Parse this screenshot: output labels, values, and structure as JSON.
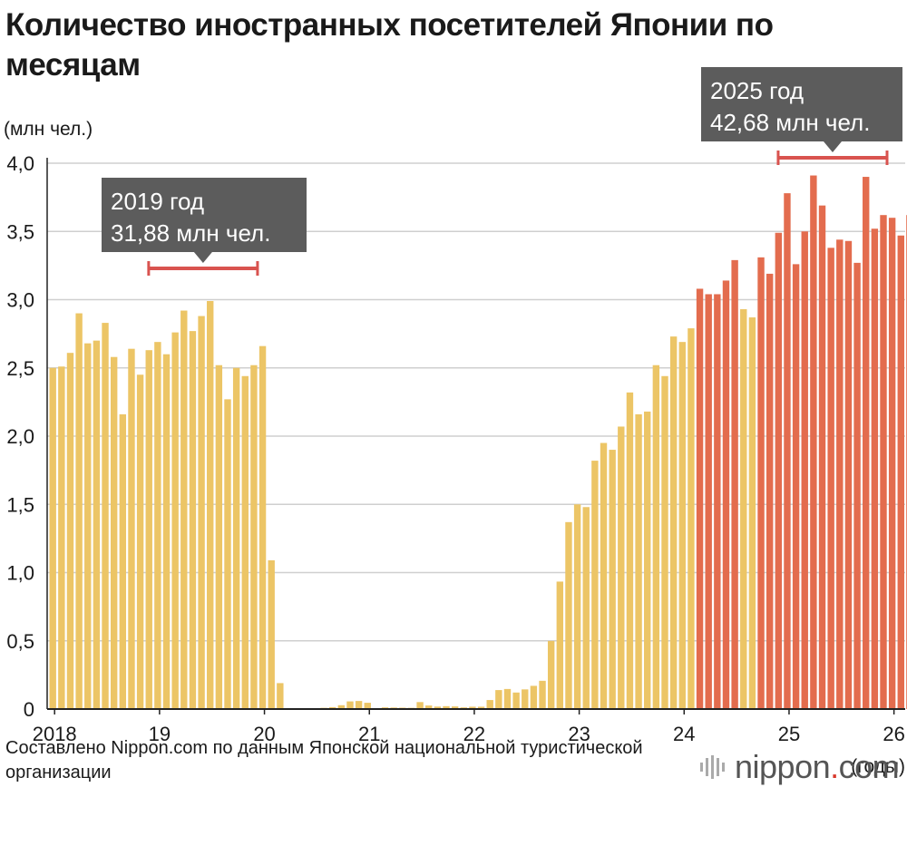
{
  "title": "Количество иностранных посетителей Японии по месяцам",
  "source": "Составлено Nippon.com по данным Японской национальной туристической организации",
  "logo": {
    "name": "nippon",
    "dot": ".",
    "suffix": "com",
    "icon": "nippon-bars-icon"
  },
  "chart_data": {
    "type": "bar",
    "yunit": "(млн чел.)",
    "xunit": "(годы)",
    "ylim": [
      0,
      4.0
    ],
    "yticks": [
      "0",
      "0,5",
      "1,0",
      "1,5",
      "2,0",
      "2,5",
      "3,0",
      "3,5",
      "4,0"
    ],
    "ytick_values": [
      0,
      0.5,
      1.0,
      1.5,
      2.0,
      2.5,
      3.0,
      3.5,
      4.0
    ],
    "xticks": [
      "2018",
      "19",
      "20",
      "21",
      "22",
      "23",
      "24",
      "25",
      "26"
    ],
    "grid": true,
    "start": "2018-01",
    "colors": {
      "base": "#ecc566",
      "highlight": "#e36c4e",
      "grid": "#cfcfcf",
      "axis": "#222222",
      "bracket": "#d9534f",
      "callout": "#5c5c5c"
    },
    "series": [
      {
        "values": [
          2.5,
          2.51,
          2.61,
          2.9,
          2.68,
          2.7,
          2.83,
          2.58,
          2.16,
          2.64,
          2.45,
          2.63,
          2.69,
          2.6,
          2.76,
          2.92,
          2.77,
          2.88,
          2.99,
          2.52,
          2.27,
          2.5,
          2.44,
          2.52,
          2.66,
          1.09,
          0.19,
          0.003,
          0.002,
          0.003,
          0.004,
          0.009,
          0.014,
          0.028,
          0.056,
          0.059,
          0.046,
          0.007,
          0.012,
          0.011,
          0.01,
          0.009,
          0.051,
          0.026,
          0.018,
          0.021,
          0.019,
          0.012,
          0.017,
          0.017,
          0.066,
          0.139,
          0.147,
          0.121,
          0.144,
          0.17,
          0.207,
          0.499,
          0.934,
          1.37,
          1.5,
          1.48,
          1.82,
          1.95,
          1.9,
          2.07,
          2.32,
          2.16,
          2.18,
          2.52,
          2.44,
          2.73,
          2.69,
          2.79,
          3.08,
          3.04,
          3.04,
          3.14,
          3.29,
          2.93,
          2.87,
          3.31,
          3.19,
          3.49,
          3.78,
          3.26,
          3.5,
          3.91,
          3.69,
          3.38,
          3.44,
          3.43,
          3.27,
          3.9,
          3.52,
          3.62,
          3.6,
          3.47,
          3.62
        ],
        "highlight": [
          false,
          false,
          false,
          false,
          false,
          false,
          false,
          false,
          false,
          false,
          false,
          false,
          false,
          false,
          false,
          false,
          false,
          false,
          false,
          false,
          false,
          false,
          false,
          false,
          false,
          false,
          false,
          false,
          false,
          false,
          false,
          false,
          false,
          false,
          false,
          false,
          false,
          false,
          false,
          false,
          false,
          false,
          false,
          false,
          false,
          false,
          false,
          false,
          false,
          false,
          false,
          false,
          false,
          false,
          false,
          false,
          false,
          false,
          false,
          false,
          false,
          false,
          false,
          false,
          false,
          false,
          false,
          false,
          false,
          false,
          false,
          false,
          false,
          false,
          true,
          true,
          true,
          true,
          true,
          false,
          false,
          true,
          true,
          true,
          true,
          true,
          true,
          true,
          true,
          true,
          true,
          true,
          true,
          true,
          true,
          true,
          true,
          true,
          true
        ]
      }
    ],
    "annotations": [
      {
        "year_label": "2019 год",
        "value_label": "31,88 млн чел.",
        "period": [
          "2019-01",
          "2019-12"
        ]
      },
      {
        "year_label": "2025 год",
        "value_label": "42,68 млн чел.",
        "period": [
          "2025-01",
          "2025-12"
        ]
      }
    ]
  }
}
